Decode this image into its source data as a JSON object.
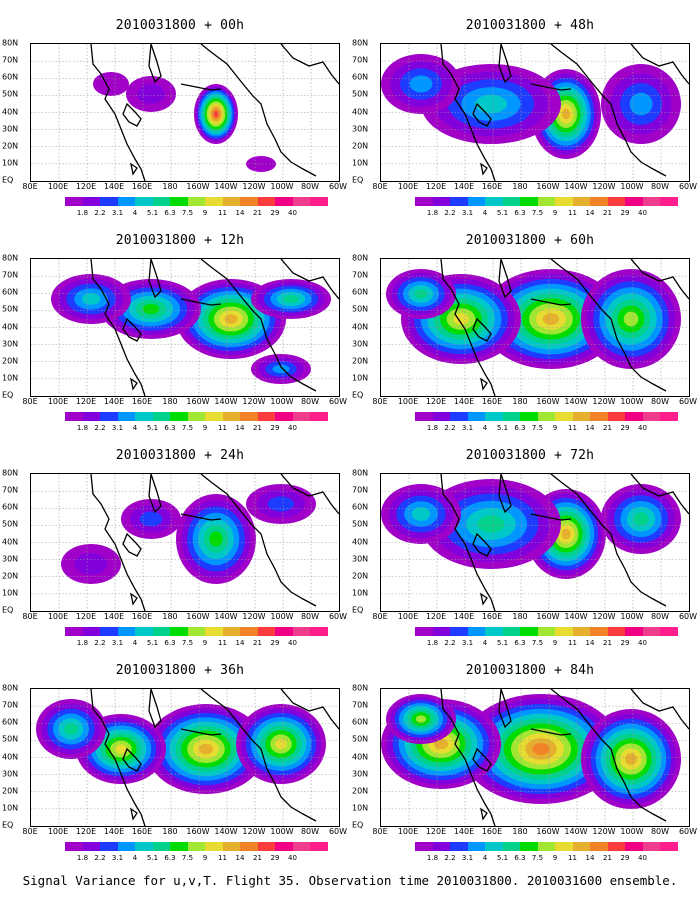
{
  "panels": [
    {
      "title": "2010031800 + 00h",
      "level": 0
    },
    {
      "title": "2010031800 + 48h",
      "level": 4
    },
    {
      "title": "2010031800 + 12h",
      "level": 1
    },
    {
      "title": "2010031800 + 60h",
      "level": 5
    },
    {
      "title": "2010031800 + 24h",
      "level": 2
    },
    {
      "title": "2010031800 + 72h",
      "level": 6
    },
    {
      "title": "2010031800 + 36h",
      "level": 3
    },
    {
      "title": "2010031800 + 84h",
      "level": 7
    }
  ],
  "y_axis_labels": [
    "80N",
    "70N",
    "60N",
    "50N",
    "40N",
    "30N",
    "20N",
    "10N",
    "EQ"
  ],
  "x_axis_labels": [
    "80E",
    "100E",
    "120E",
    "140E",
    "160E",
    "180",
    "160W",
    "140W",
    "120W",
    "100W",
    "80W",
    "60W"
  ],
  "colorbar": {
    "labels": [
      "1.8",
      "2.2",
      "3.1",
      "4",
      "5.1",
      "6.3",
      "7.5",
      "9",
      "11",
      "14",
      "21",
      "29",
      "40"
    ],
    "colors": [
      "#a000c8",
      "#8200dc",
      "#1e3cff",
      "#0096ff",
      "#00c8c8",
      "#00d28c",
      "#00dc00",
      "#a0e632",
      "#e6dc32",
      "#e6af2d",
      "#f08228",
      "#fa3c3c",
      "#f00082"
    ]
  },
  "caption": "Signal Variance for u,v,T. Flight 35. Observation time 2010031800. 2010031600 ensemble."
}
